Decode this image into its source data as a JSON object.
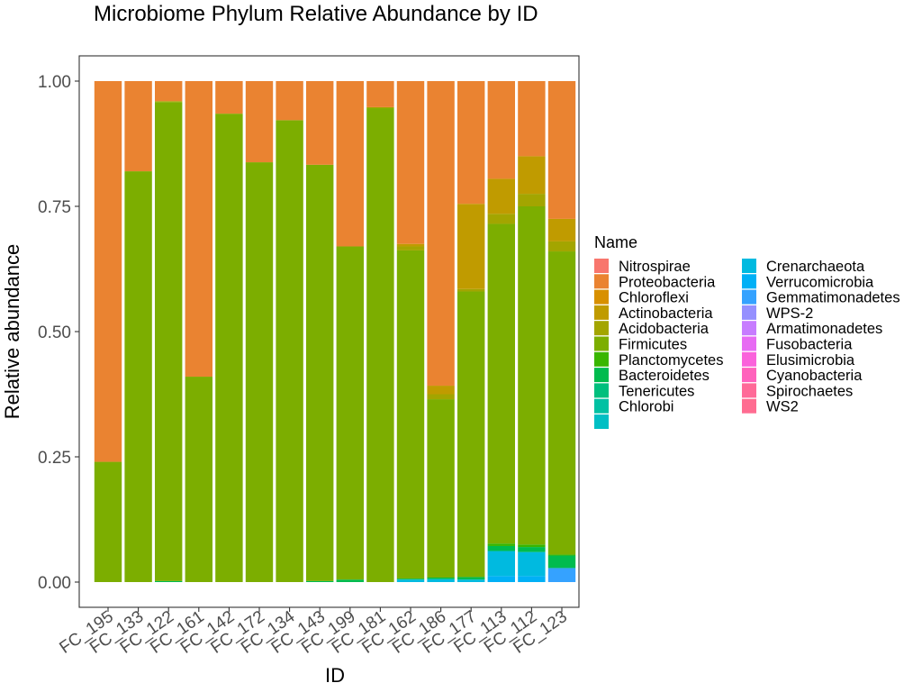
{
  "chart_data": {
    "type": "bar",
    "stacked": true,
    "title": "Microbiome Phylum Relative Abundance by ID",
    "xlabel": "ID",
    "ylabel": "Relative abundance",
    "ylim": [
      0,
      1
    ],
    "yticks": [
      "0.00",
      "0.25",
      "0.50",
      "0.75",
      "1.00"
    ],
    "grid": false,
    "legend": {
      "title": "Name",
      "position": "right",
      "columns": 2,
      "items": [
        {
          "name": "Nitrospirae",
          "color": "#F8766D"
        },
        {
          "name": "Proteobacteria",
          "color": "#EA8331"
        },
        {
          "name": "Chloroflexi",
          "color": "#D89000"
        },
        {
          "name": "Actinobacteria",
          "color": "#C09B00"
        },
        {
          "name": "Acidobacteria",
          "color": "#A3A500"
        },
        {
          "name": "Firmicutes",
          "color": "#7CAE00"
        },
        {
          "name": "Planctomycetes",
          "color": "#39B600"
        },
        {
          "name": "Bacteroidetes",
          "color": "#00BB4E"
        },
        {
          "name": "Tenericutes",
          "color": "#00BF7D"
        },
        {
          "name": "Chlorobi",
          "color": "#00C1A3"
        },
        {
          "name": "",
          "color": "#00BFC4"
        },
        {
          "name": "Crenarchaeota",
          "color": "#00BAE0"
        },
        {
          "name": "Verrucomicrobia",
          "color": "#00B0F6"
        },
        {
          "name": "Gemmatimonadetes",
          "color": "#35A2FF"
        },
        {
          "name": "WPS-2",
          "color": "#9590FF"
        },
        {
          "name": "Armatimonadetes",
          "color": "#C77CFF"
        },
        {
          "name": "Fusobacteria",
          "color": "#E76BF3"
        },
        {
          "name": "Elusimicrobia",
          "color": "#FA62DB"
        },
        {
          "name": "Cyanobacteria",
          "color": "#FF62BC"
        },
        {
          "name": "Spirochaetes",
          "color": "#FF6A98"
        },
        {
          "name": "WS2",
          "color": "#FF6C91"
        }
      ]
    },
    "categories": [
      "FC_195",
      "FC_133",
      "FC_122",
      "FC_161",
      "FC_142",
      "FC_172",
      "FC_134",
      "FC_143",
      "FC_199",
      "FC_181",
      "FC_162",
      "FC_186",
      "FC_177",
      "FC_113",
      "FC_112",
      "FC_123"
    ],
    "bars": [
      {
        "id": "FC_195",
        "stack": [
          {
            "series": "Firmicutes",
            "value": 0.24
          },
          {
            "series": "Proteobacteria",
            "value": 0.76
          }
        ]
      },
      {
        "id": "FC_133",
        "stack": [
          {
            "series": "Firmicutes",
            "value": 0.82
          },
          {
            "series": "Proteobacteria",
            "value": 0.18
          }
        ]
      },
      {
        "id": "FC_122",
        "stack": [
          {
            "series": "Bacteroidetes",
            "value": 0.002
          },
          {
            "series": "Firmicutes",
            "value": 0.956
          },
          {
            "series": "Acidobacteria",
            "value": 0.002
          },
          {
            "series": "Proteobacteria",
            "value": 0.04
          }
        ]
      },
      {
        "id": "FC_161",
        "stack": [
          {
            "series": "Firmicutes",
            "value": 0.41
          },
          {
            "series": "Proteobacteria",
            "value": 0.59
          }
        ]
      },
      {
        "id": "FC_142",
        "stack": [
          {
            "series": "Firmicutes",
            "value": 0.935
          },
          {
            "series": "Proteobacteria",
            "value": 0.065
          }
        ]
      },
      {
        "id": "FC_172",
        "stack": [
          {
            "series": "Firmicutes",
            "value": 0.838
          },
          {
            "series": "Proteobacteria",
            "value": 0.162
          }
        ]
      },
      {
        "id": "FC_134",
        "stack": [
          {
            "series": "Firmicutes",
            "value": 0.922
          },
          {
            "series": "Proteobacteria",
            "value": 0.078
          }
        ]
      },
      {
        "id": "FC_143",
        "stack": [
          {
            "series": "Bacteroidetes",
            "value": 0.002
          },
          {
            "series": "Firmicutes",
            "value": 0.831
          },
          {
            "series": "Proteobacteria",
            "value": 0.167
          }
        ]
      },
      {
        "id": "FC_199",
        "stack": [
          {
            "series": "Bacteroidetes",
            "value": 0.005
          },
          {
            "series": "Firmicutes",
            "value": 0.665
          },
          {
            "series": "Proteobacteria",
            "value": 0.33
          }
        ]
      },
      {
        "id": "FC_181",
        "stack": [
          {
            "series": "Firmicutes",
            "value": 0.946
          },
          {
            "series": "Acidobacteria",
            "value": 0.002
          },
          {
            "series": "Proteobacteria",
            "value": 0.052
          }
        ]
      },
      {
        "id": "FC_162",
        "stack": [
          {
            "series": "Crenarchaeota",
            "value": 0.005
          },
          {
            "series": "Bacteroidetes",
            "value": 0.002
          },
          {
            "series": "Firmicutes",
            "value": 0.655
          },
          {
            "series": "Acidobacteria",
            "value": 0.008
          },
          {
            "series": "Actinobacteria",
            "value": 0.005
          },
          {
            "series": "Proteobacteria",
            "value": 0.325
          }
        ]
      },
      {
        "id": "FC_186",
        "stack": [
          {
            "series": "Crenarchaeota",
            "value": 0.006
          },
          {
            "series": "Bacteroidetes",
            "value": 0.003
          },
          {
            "series": "Firmicutes",
            "value": 0.356
          },
          {
            "series": "Acidobacteria",
            "value": 0.01
          },
          {
            "series": "Actinobacteria",
            "value": 0.017
          },
          {
            "series": "Proteobacteria",
            "value": 0.608
          }
        ]
      },
      {
        "id": "FC_177",
        "stack": [
          {
            "series": "Crenarchaeota",
            "value": 0.005
          },
          {
            "series": "Bacteroidetes",
            "value": 0.005
          },
          {
            "series": "Firmicutes",
            "value": 0.57
          },
          {
            "series": "Acidobacteria",
            "value": 0.005
          },
          {
            "series": "Actinobacteria",
            "value": 0.17
          },
          {
            "series": "Proteobacteria",
            "value": 0.245
          }
        ]
      },
      {
        "id": "FC_113",
        "stack": [
          {
            "series": "Verrucomicrobia",
            "value": 0.012
          },
          {
            "series": "Crenarchaeota",
            "value": 0.05
          },
          {
            "series": "Bacteroidetes",
            "value": 0.01
          },
          {
            "series": "Planctomycetes",
            "value": 0.005
          },
          {
            "series": "Firmicutes",
            "value": 0.638
          },
          {
            "series": "Acidobacteria",
            "value": 0.02
          },
          {
            "series": "Actinobacteria",
            "value": 0.07
          },
          {
            "series": "Proteobacteria",
            "value": 0.195
          }
        ]
      },
      {
        "id": "FC_112",
        "stack": [
          {
            "series": "Verrucomicrobia",
            "value": 0.012
          },
          {
            "series": "Crenarchaeota",
            "value": 0.048
          },
          {
            "series": "Bacteroidetes",
            "value": 0.01
          },
          {
            "series": "Planctomycetes",
            "value": 0.005
          },
          {
            "series": "Firmicutes",
            "value": 0.675
          },
          {
            "series": "Acidobacteria",
            "value": 0.025
          },
          {
            "series": "Actinobacteria",
            "value": 0.075
          },
          {
            "series": "Proteobacteria",
            "value": 0.15
          }
        ]
      },
      {
        "id": "FC_123",
        "stack": [
          {
            "series": "Gemmatimonadetes",
            "value": 0.028
          },
          {
            "series": "Bacteroidetes",
            "value": 0.025
          },
          {
            "series": "Planctomycetes",
            "value": 0.002
          },
          {
            "series": "Firmicutes",
            "value": 0.605
          },
          {
            "series": "Acidobacteria",
            "value": 0.02
          },
          {
            "series": "Actinobacteria",
            "value": 0.045
          },
          {
            "series": "Proteobacteria",
            "value": 0.275
          }
        ]
      }
    ]
  }
}
